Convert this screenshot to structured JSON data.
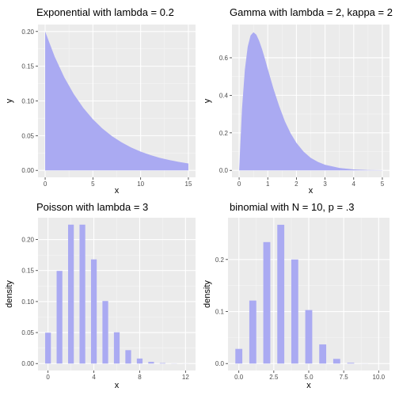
{
  "figure": {
    "panel_background": "#ebebeb",
    "grid_major": "#ffffff",
    "grid_minor": "#f5f5f5",
    "tick_color": "#333333",
    "fill_color": "#aaaaf2"
  },
  "chart_data": [
    {
      "type": "area",
      "title": "Exponential with lambda = 0.2",
      "xlabel": "x",
      "ylabel": "y",
      "xlim": [
        0,
        15
      ],
      "ylim": [
        0,
        0.2
      ],
      "xticks": [
        0,
        5,
        10,
        15
      ],
      "xtick_labels": [
        "0",
        "5",
        "10",
        "15"
      ],
      "yticks": [
        0,
        0.05,
        0.1,
        0.15,
        0.2
      ],
      "ytick_labels": [
        "0.00",
        "0.05",
        "0.10",
        "0.15",
        "0.20"
      ],
      "x": [
        0,
        1,
        2,
        3,
        4,
        5,
        6,
        7,
        8,
        9,
        10,
        11,
        12,
        13,
        14,
        15
      ],
      "y": [
        0.2,
        0.1637,
        0.1341,
        0.1098,
        0.0899,
        0.0736,
        0.0602,
        0.0493,
        0.0404,
        0.0331,
        0.0271,
        0.0222,
        0.0181,
        0.0149,
        0.0122,
        0.01
      ]
    },
    {
      "type": "area",
      "title": "Gamma with lambda = 2, kappa = 2",
      "xlabel": "x",
      "ylabel": "y",
      "xlim": [
        0,
        5
      ],
      "ylim": [
        0,
        0.74
      ],
      "xticks": [
        0,
        1,
        2,
        3,
        4,
        5
      ],
      "xtick_labels": [
        "0",
        "1",
        "2",
        "3",
        "4",
        "5"
      ],
      "yticks": [
        0,
        0.2,
        0.4,
        0.6
      ],
      "ytick_labels": [
        "0.0",
        "0.2",
        "0.4",
        "0.6"
      ],
      "x": [
        0,
        0.1,
        0.2,
        0.3,
        0.4,
        0.5,
        0.6,
        0.7,
        0.8,
        0.9,
        1.0,
        1.2,
        1.4,
        1.6,
        1.8,
        2.0,
        2.25,
        2.5,
        2.75,
        3.0,
        3.5,
        4.0,
        4.5,
        5.0
      ],
      "y": [
        0,
        0.327,
        0.536,
        0.659,
        0.719,
        0.736,
        0.723,
        0.69,
        0.646,
        0.595,
        0.541,
        0.435,
        0.342,
        0.261,
        0.197,
        0.147,
        0.1,
        0.067,
        0.045,
        0.03,
        0.013,
        0.005,
        0.002,
        0.001
      ]
    },
    {
      "type": "bar",
      "title": "Poisson with lambda = 3",
      "xlabel": "x",
      "ylabel": "density",
      "xlim": [
        0,
        12
      ],
      "ylim": [
        0,
        0.224
      ],
      "bar_width": 0.5,
      "xticks": [
        0,
        4,
        8,
        12
      ],
      "xtick_labels": [
        "0",
        "4",
        "8",
        "12"
      ],
      "yticks": [
        0,
        0.05,
        0.1,
        0.15,
        0.2
      ],
      "ytick_labels": [
        "0.00",
        "0.05",
        "0.10",
        "0.15",
        "0.20"
      ],
      "x": [
        0,
        1,
        2,
        3,
        4,
        5,
        6,
        7,
        8,
        9,
        10,
        11,
        12
      ],
      "y": [
        0.0498,
        0.1494,
        0.224,
        0.224,
        0.168,
        0.1008,
        0.0504,
        0.0216,
        0.0081,
        0.0027,
        0.0008,
        0.0002,
        0.0001
      ]
    },
    {
      "type": "bar",
      "title": "binomial with N = 10, p = .3",
      "xlabel": "x",
      "ylabel": "density",
      "xlim": [
        0,
        10
      ],
      "ylim": [
        0,
        0.267
      ],
      "bar_width": 0.5,
      "xticks": [
        0,
        2.5,
        5,
        7.5,
        10
      ],
      "xtick_labels": [
        "0.0",
        "2.5",
        "5.0",
        "7.5",
        "10.0"
      ],
      "yticks": [
        0,
        0.1,
        0.2
      ],
      "ytick_labels": [
        "0.0",
        "0.1",
        "0.2"
      ],
      "x": [
        0,
        1,
        2,
        3,
        4,
        5,
        6,
        7,
        8,
        9,
        10
      ],
      "y": [
        0.0282,
        0.1211,
        0.2335,
        0.2668,
        0.2001,
        0.1029,
        0.0368,
        0.009,
        0.0014,
        0.0001,
        0.0
      ]
    }
  ]
}
